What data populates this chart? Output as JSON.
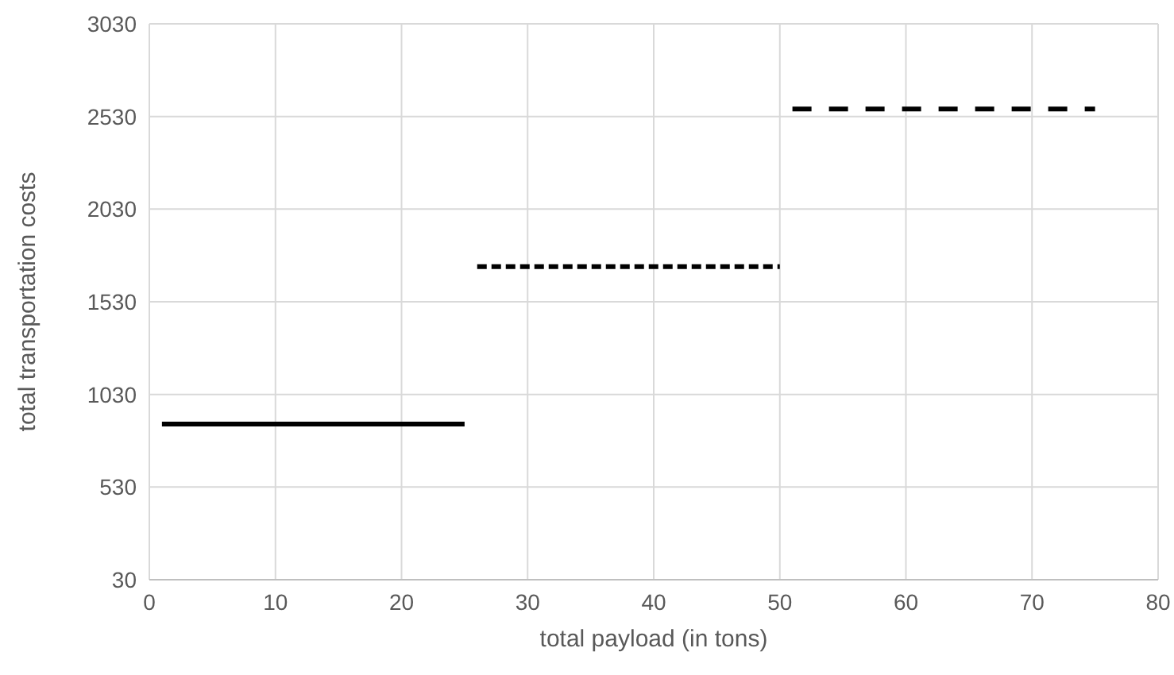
{
  "chart_data": {
    "type": "line",
    "xlabel": "total payload (in tons)",
    "ylabel": "total transportation costs",
    "xlim": [
      0,
      80
    ],
    "xticks": [
      0,
      10,
      20,
      30,
      40,
      50,
      60,
      70,
      80
    ],
    "ylim": [
      30,
      3030
    ],
    "yticks": [
      30,
      530,
      1030,
      1530,
      2030,
      2530,
      3030
    ],
    "grid": true,
    "marker": "none",
    "series": [
      {
        "color": "#000000",
        "x": [
          1,
          25
        ],
        "values": [
          870,
          870
        ],
        "line_style": "solid"
      },
      {
        "color": "#000000",
        "x": [
          26,
          50
        ],
        "values": [
          1720,
          1720
        ],
        "line_style": "dotted"
      },
      {
        "color": "#000000",
        "x": [
          51,
          75
        ],
        "values": [
          2570,
          2570
        ],
        "line_style": "dashed"
      }
    ]
  }
}
